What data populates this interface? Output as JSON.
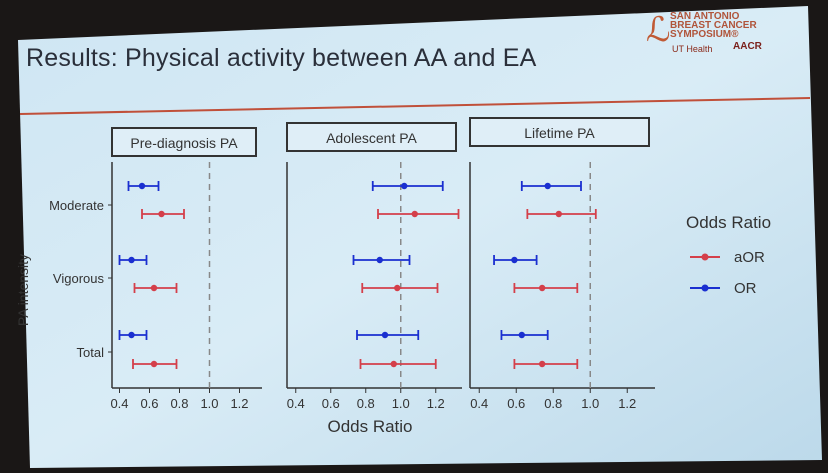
{
  "slide": {
    "title": "Results: Physical activity between AA and EA"
  },
  "logo": {
    "line1": "SAN ANTONIO",
    "line2": "BREAST CANCER",
    "line3": "SYMPOSIUM®",
    "ut": "UT Health",
    "aacr": "AACR"
  },
  "colors": {
    "aOR": "#d43f4a",
    "OR": "#1a2fd0",
    "reference_line": "#888888"
  },
  "chart_data": {
    "type": "forest",
    "ylabel": "PA intensity",
    "xlabel": "Odds Ratio",
    "legend_title": "Odds Ratio",
    "legend_position": "right",
    "categories": [
      "Moderate",
      "Vigorous",
      "Total"
    ],
    "xticks": [
      0.4,
      0.6,
      0.8,
      1.0,
      1.2
    ],
    "xtick_labels": [
      "0.4",
      "0.6",
      "0.8",
      "1.0",
      "1.2"
    ],
    "xlim": [
      0.35,
      1.35
    ],
    "reference_x": 1.0,
    "series": [
      {
        "name": "aOR"
      },
      {
        "name": "OR"
      }
    ],
    "panels": [
      {
        "title": "Pre-diagnosis PA",
        "aOR": [
          {
            "est": 0.68,
            "lo": 0.55,
            "hi": 0.83
          },
          {
            "est": 0.63,
            "lo": 0.5,
            "hi": 0.78
          },
          {
            "est": 0.63,
            "lo": 0.49,
            "hi": 0.78
          }
        ],
        "OR": [
          {
            "est": 0.55,
            "lo": 0.46,
            "hi": 0.66
          },
          {
            "est": 0.48,
            "lo": 0.4,
            "hi": 0.58
          },
          {
            "est": 0.48,
            "lo": 0.4,
            "hi": 0.58
          }
        ]
      },
      {
        "title": "Adolescent PA",
        "aOR": [
          {
            "est": 1.08,
            "lo": 0.87,
            "hi": 1.33
          },
          {
            "est": 0.98,
            "lo": 0.78,
            "hi": 1.21
          },
          {
            "est": 0.96,
            "lo": 0.77,
            "hi": 1.2
          }
        ],
        "OR": [
          {
            "est": 1.02,
            "lo": 0.84,
            "hi": 1.24
          },
          {
            "est": 0.88,
            "lo": 0.73,
            "hi": 1.05
          },
          {
            "est": 0.91,
            "lo": 0.75,
            "hi": 1.1
          }
        ]
      },
      {
        "title": "Lifetime PA",
        "aOR": [
          {
            "est": 0.83,
            "lo": 0.66,
            "hi": 1.03
          },
          {
            "est": 0.74,
            "lo": 0.59,
            "hi": 0.93
          },
          {
            "est": 0.74,
            "lo": 0.59,
            "hi": 0.93
          }
        ],
        "OR": [
          {
            "est": 0.77,
            "lo": 0.63,
            "hi": 0.95
          },
          {
            "est": 0.59,
            "lo": 0.48,
            "hi": 0.71
          },
          {
            "est": 0.63,
            "lo": 0.52,
            "hi": 0.77
          }
        ]
      }
    ]
  }
}
